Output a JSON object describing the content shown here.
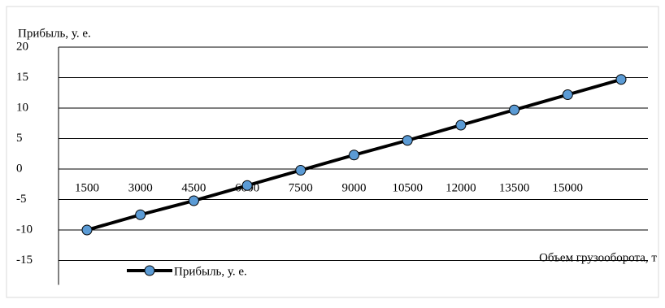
{
  "chart_data": {
    "type": "line",
    "title": "Прибыль, у. е.",
    "x_label": "Объем грузооборота, т",
    "categories": [
      "1500",
      "3000",
      "4500",
      "6000",
      "7500",
      "9000",
      "10500",
      "12000",
      "13500",
      "15000",
      null
    ],
    "series": [
      {
        "name": "Прибыль, у. е.",
        "color": "#000000",
        "marker_color": "#5b9bd5",
        "values": [
          -10,
          -7.5,
          -5.2,
          -2.7,
          -0.2,
          2.3,
          4.7,
          7.2,
          9.7,
          12.2,
          14.7
        ]
      }
    ],
    "ylim": [
      -20,
      20
    ],
    "yticks": [
      -15,
      -10,
      -5,
      0,
      5,
      10,
      15,
      20
    ],
    "grid": true,
    "legend": "bottom-left"
  }
}
